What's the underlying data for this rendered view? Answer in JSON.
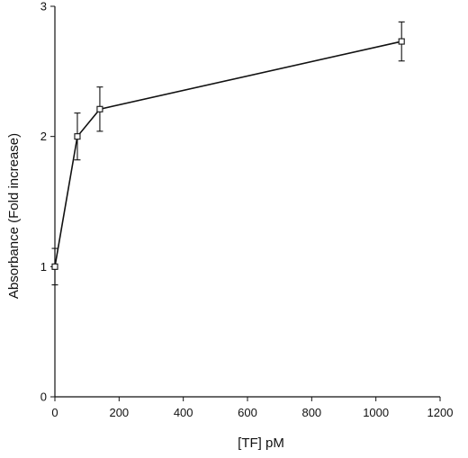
{
  "chart_data": {
    "type": "line",
    "title": "",
    "xlabel": "[TF] pM",
    "ylabel": "Absorbance (Fold increase)",
    "xlim": [
      0,
      1200
    ],
    "ylim": [
      0,
      3
    ],
    "xticks": [
      0,
      200,
      400,
      600,
      800,
      1000,
      1200
    ],
    "yticks": [
      0,
      1,
      2,
      3
    ],
    "xtick_labels": [
      "0",
      "200",
      "400",
      "600",
      "800",
      "1000",
      "1200"
    ],
    "ytick_labels": [
      "0",
      "1",
      "2",
      "3"
    ],
    "grid": false,
    "marker": "open-square",
    "series": [
      {
        "x": [
          0,
          70,
          140,
          1080
        ],
        "y": [
          1.0,
          2.0,
          2.21,
          2.73
        ],
        "error": [
          0.14,
          0.18,
          0.17,
          0.15
        ]
      }
    ]
  }
}
